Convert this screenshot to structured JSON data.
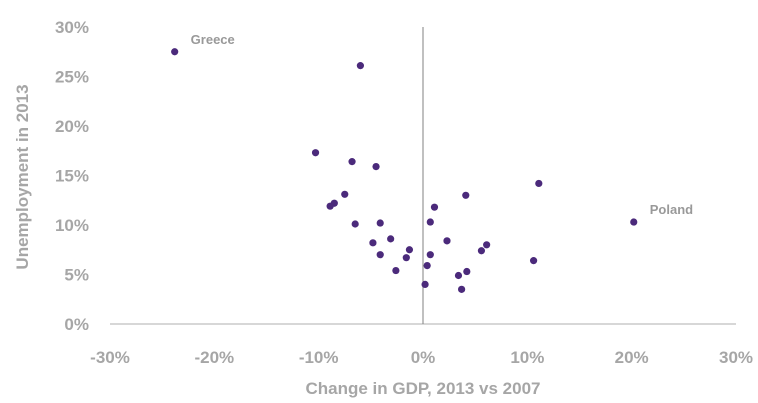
{
  "chart_data": {
    "type": "scatter",
    "xlabel": "Change in GDP, 2013 vs 2007",
    "ylabel": "Unemployment in 2013",
    "xlim": [
      -30,
      30
    ],
    "ylim": [
      0,
      30
    ],
    "x_ticks": [
      "-30%",
      "-20%",
      "-10%",
      "0%",
      "10%",
      "20%",
      "30%"
    ],
    "y_ticks": [
      "0%",
      "5%",
      "10%",
      "15%",
      "20%",
      "25%",
      "30%"
    ],
    "grid": false,
    "series": [
      {
        "points": [
          {
            "x": -23.8,
            "y": 27.5
          },
          {
            "x": -6.0,
            "y": 26.1
          },
          {
            "x": -10.3,
            "y": 17.3
          },
          {
            "x": -6.8,
            "y": 16.4
          },
          {
            "x": -4.5,
            "y": 15.9
          },
          {
            "x": -7.5,
            "y": 13.1
          },
          {
            "x": -8.5,
            "y": 12.2
          },
          {
            "x": -8.9,
            "y": 11.9
          },
          {
            "x": -6.5,
            "y": 10.1
          },
          {
            "x": -4.1,
            "y": 10.2
          },
          {
            "x": -3.1,
            "y": 8.6
          },
          {
            "x": -4.8,
            "y": 8.2
          },
          {
            "x": -4.1,
            "y": 7.0
          },
          {
            "x": -1.3,
            "y": 7.5
          },
          {
            "x": -1.6,
            "y": 6.7
          },
          {
            "x": -2.6,
            "y": 5.4
          },
          {
            "x": 1.1,
            "y": 11.8
          },
          {
            "x": 0.7,
            "y": 10.3
          },
          {
            "x": 4.1,
            "y": 13.0
          },
          {
            "x": 2.3,
            "y": 8.4
          },
          {
            "x": 0.7,
            "y": 7.0
          },
          {
            "x": 0.4,
            "y": 5.9
          },
          {
            "x": 0.2,
            "y": 4.0
          },
          {
            "x": 3.4,
            "y": 4.9
          },
          {
            "x": 4.2,
            "y": 5.3
          },
          {
            "x": 3.7,
            "y": 3.5
          },
          {
            "x": 5.6,
            "y": 7.4
          },
          {
            "x": 6.1,
            "y": 8.0
          },
          {
            "x": 10.6,
            "y": 6.4
          },
          {
            "x": 11.1,
            "y": 14.2
          },
          {
            "x": 20.2,
            "y": 10.3
          }
        ]
      }
    ],
    "annotations": [
      {
        "text": "Greece",
        "x": -23.8,
        "y": 27.5
      },
      {
        "text": "Poland",
        "x": 20.2,
        "y": 10.3
      }
    ],
    "colors": {
      "points": "#4b2a7b",
      "text": "#a6a6a6",
      "axis": "#bfbfbf",
      "zero_line": "#808080"
    }
  }
}
